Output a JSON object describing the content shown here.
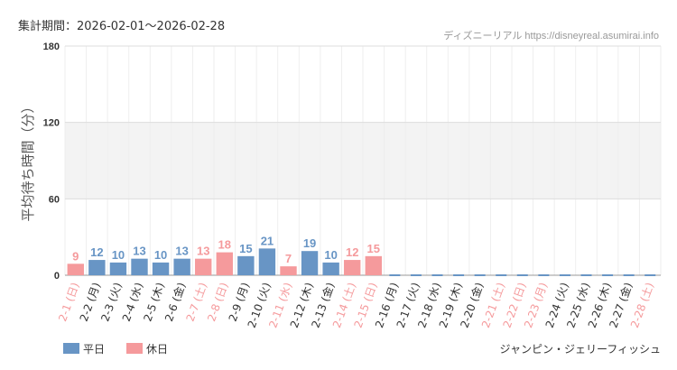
{
  "header": {
    "period": "集計期間：2026-02-01〜2026-02-28"
  },
  "credit": "ディズニーリアル https://disneyreal.asumirai.info",
  "attraction": "ジャンピン・ジェリーフィッシュ",
  "legend": {
    "weekday": "平日",
    "holiday": "休日"
  },
  "colors": {
    "weekday": "#6895c5",
    "holiday": "#f59a9c",
    "grid": "#dddddd",
    "band": "#f3f3f3"
  },
  "chart_data": {
    "type": "bar",
    "ylabel": "平均待ち時間（分）",
    "ylim": [
      0,
      180
    ],
    "yticks": [
      0,
      60,
      120,
      180
    ],
    "shaded_band": [
      60,
      120
    ],
    "categories": [
      "2-1 (日)",
      "2-2 (月)",
      "2-3 (火)",
      "2-4 (水)",
      "2-5 (木)",
      "2-6 (金)",
      "2-7 (土)",
      "2-8 (日)",
      "2-9 (月)",
      "2-10 (火)",
      "2-11 (水)",
      "2-12 (木)",
      "2-13 (金)",
      "2-14 (土)",
      "2-15 (日)",
      "2-16 (月)",
      "2-17 (火)",
      "2-18 (水)",
      "2-19 (木)",
      "2-20 (金)",
      "2-21 (土)",
      "2-22 (日)",
      "2-23 (月)",
      "2-24 (火)",
      "2-25 (水)",
      "2-26 (木)",
      "2-27 (金)",
      "2-28 (土)"
    ],
    "values": [
      9,
      12,
      10,
      13,
      10,
      13,
      13,
      18,
      15,
      21,
      7,
      19,
      10,
      12,
      15,
      null,
      null,
      null,
      null,
      null,
      null,
      null,
      null,
      null,
      null,
      null,
      null,
      null
    ],
    "holiday": [
      true,
      false,
      false,
      false,
      false,
      false,
      true,
      true,
      false,
      false,
      true,
      false,
      false,
      true,
      true,
      false,
      false,
      false,
      false,
      false,
      true,
      true,
      true,
      false,
      false,
      false,
      false,
      true
    ]
  }
}
